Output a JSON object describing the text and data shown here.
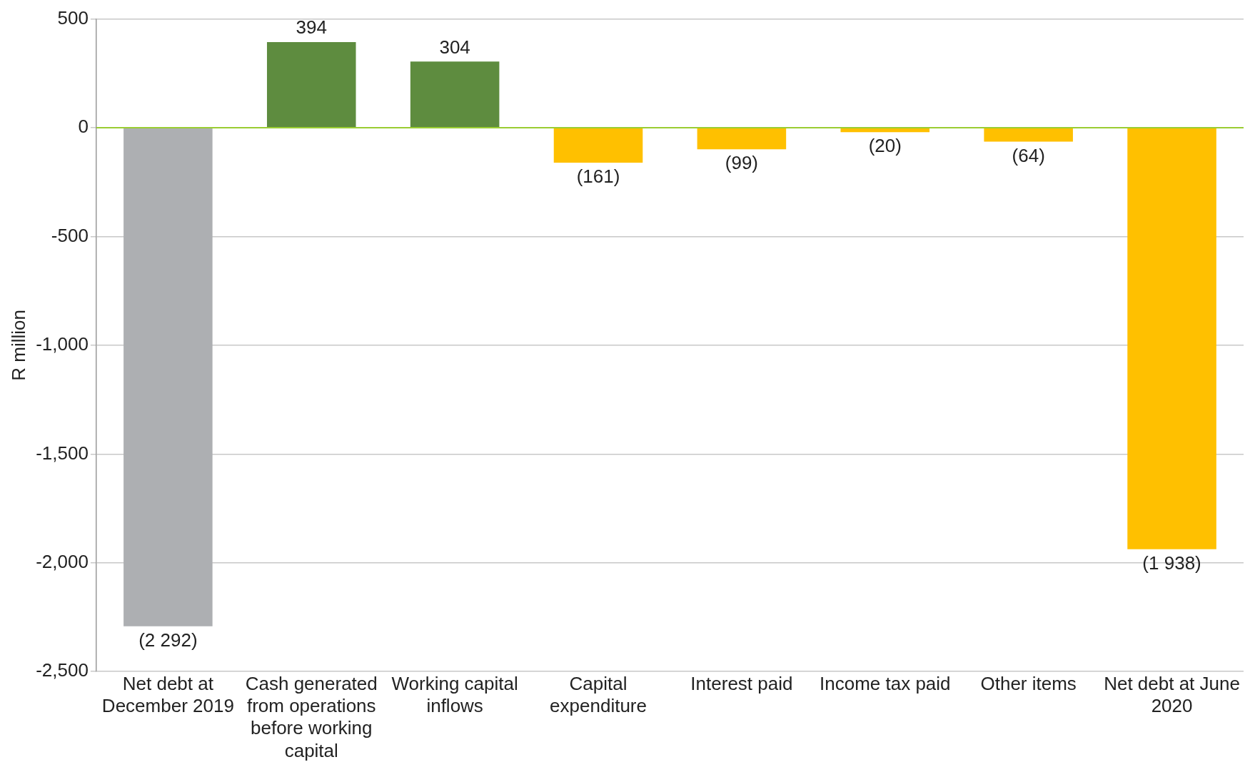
{
  "chart_data": {
    "type": "bar",
    "ylabel": "R million",
    "categories": [
      "Net debt at December 2019",
      "Cash generated from operations before working capital",
      "Working capital inflows",
      "Capital expenditure",
      "Interest paid",
      "Income tax paid",
      "Other items",
      "Net debt at June 2020"
    ],
    "values": [
      -2292,
      394,
      304,
      -161,
      -99,
      -20,
      -64,
      -1938
    ],
    "colors": [
      "#adafb2",
      "#5e8c3f",
      "#5e8c3f",
      "#ffc000",
      "#ffc000",
      "#ffc000",
      "#ffc000",
      "#ffc000"
    ],
    "value_labels": [
      "(2 292)",
      "394",
      "304",
      "(161)",
      "(99)",
      "(20)",
      "(64)",
      "(1 938)"
    ],
    "ylim": [
      -2500,
      500
    ],
    "yticks": [
      {
        "value": 500,
        "label": "500"
      },
      {
        "value": 0,
        "label": "0"
      },
      {
        "value": -500,
        "label": "-500"
      },
      {
        "value": -1000,
        "label": "-1,000"
      },
      {
        "value": -1500,
        "label": "-1,500"
      },
      {
        "value": -2000,
        "label": "-2,000"
      },
      {
        "value": -2500,
        "label": "-2,500"
      }
    ],
    "ref_lines": [
      {
        "axis": "y",
        "value": 0,
        "color": "#9acd32"
      }
    ],
    "grid": "y",
    "legend": false
  }
}
